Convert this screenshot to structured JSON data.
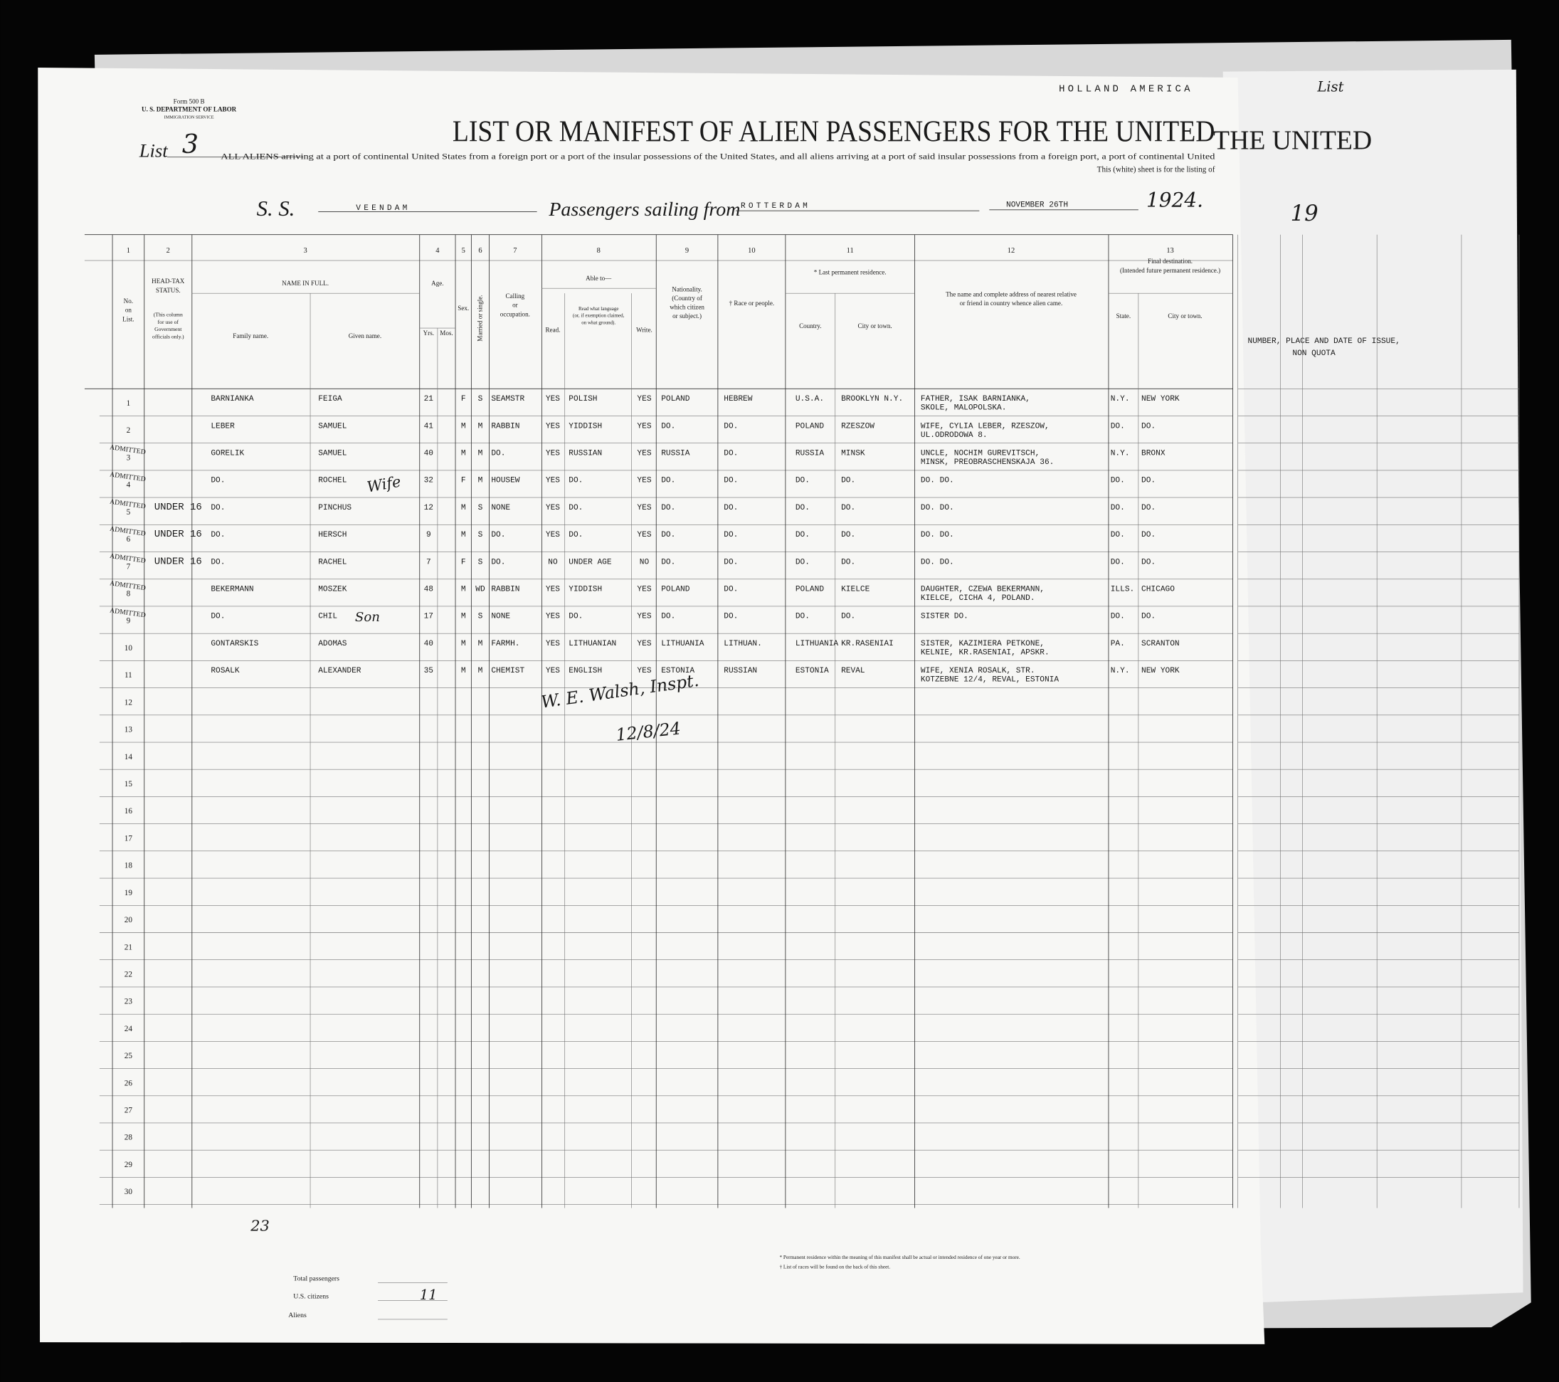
{
  "header": {
    "line_name": "HOLLAND AMERICA",
    "form": "Form 500 B",
    "department": "U. S. DEPARTMENT OF LABOR",
    "service": "IMMIGRATION SERVICE",
    "list_label": "List",
    "list_number": "3",
    "title": "LIST OR MANIFEST OF ALIEN PASSENGERS FOR THE UNITED",
    "subtitle": [
      "ALL ALIENS arriving at a port of continental United States from a foreign port or a port of the insular possessions of the United States, and all aliens arriving at a port of said insular possessions from a foreign port, a port of continental United",
      "This (white) sheet is for the listing of"
    ],
    "ss_label": "S. S.",
    "ship": "VEENDAM",
    "sailing_label": "Passengers sailing from",
    "port": "ROTTERDAM",
    "date": "NOVEMBER 26TH",
    "year": "1924."
  },
  "back_sheet": {
    "list_label": "List",
    "title": "THE UNITED",
    "year": "19",
    "column_note": "NUMBER, PLACE AND DATE OF ISSUE,",
    "quota": "NON QUOTA"
  },
  "columns": [
    {
      "number": "1",
      "label": [
        "No.",
        "on",
        "List."
      ]
    },
    {
      "number": "2",
      "label": [
        "HEAD-TAX",
        "STATUS."
      ],
      "note": [
        "(This column",
        "for use of",
        "Government",
        "officials only.)"
      ]
    },
    {
      "number": "3",
      "label": [
        "NAME IN FULL."
      ],
      "sub": [
        "Family name.",
        "Given name."
      ]
    },
    {
      "number": "4",
      "label": [
        "Age."
      ],
      "sub": [
        "Yrs.",
        "Mos."
      ]
    },
    {
      "number": "5",
      "label": [
        "Sex."
      ]
    },
    {
      "number": "6",
      "label": [
        "Married or single."
      ]
    },
    {
      "number": "7",
      "label": [
        "Calling",
        "or",
        "occupation."
      ]
    },
    {
      "number": "8",
      "label": [
        "Able to—"
      ],
      "sub": [
        "Read.",
        "Read what language",
        "(or, if exemption claimed,",
        "on what ground).",
        "Write."
      ]
    },
    {
      "number": "9",
      "label": [
        "Nationality.",
        "(Country of",
        "which citizen",
        "or subject.)"
      ]
    },
    {
      "number": "10",
      "label": [
        "† Race or people."
      ]
    },
    {
      "number": "11",
      "label": [
        "* Last permanent residence."
      ],
      "sub": [
        "Country.",
        "City or town."
      ]
    },
    {
      "number": "12",
      "label": [
        "The name and complete address of nearest relative",
        "or friend in country whence alien came."
      ]
    },
    {
      "number": "13",
      "label": [
        "Final destination.",
        "(Intended future permanent residence.)"
      ],
      "sub": [
        "State.",
        "City or town."
      ]
    }
  ],
  "row_numbers": [
    "1",
    "2",
    "3",
    "4",
    "5",
    "6",
    "7",
    "8",
    "9",
    "10",
    "11",
    "12",
    "13",
    "14",
    "15",
    "16",
    "17",
    "18",
    "19",
    "20",
    "21",
    "22",
    "23",
    "24",
    "25",
    "26",
    "27",
    "28",
    "29",
    "30"
  ],
  "rows": [
    {
      "family": "BARNIANKA",
      "given": "FEIGA",
      "yrs": "21",
      "sex": "F",
      "married": "S",
      "occupation": "SEAMSTR",
      "read": "YES",
      "language": "POLISH",
      "write": "YES",
      "nationality": "POLAND",
      "race": "HEBREW",
      "country": "U.S.A.",
      "city": "BROOKLYN N.Y.",
      "relative": [
        "FATHER, ISAK BARNIANKA,",
        "SKOLE, MALOPOLSKA."
      ],
      "state": "N.Y.",
      "dest_city": "NEW YORK"
    },
    {
      "family": "LEBER",
      "given": "SAMUEL",
      "yrs": "41",
      "sex": "M",
      "married": "M",
      "occupation": "RABBIN",
      "read": "YES",
      "language": "YIDDISH",
      "write": "YES",
      "nationality": "DO.",
      "race": "DO.",
      "country": "POLAND",
      "city": "RZESZOW",
      "relative": [
        "WIFE, CYLIA LEBER, RZESZOW,",
        "UL.ODRODOWA 8."
      ],
      "state": "DO.",
      "dest_city": "DO."
    },
    {
      "head_tax": [
        "ADMITTED"
      ],
      "family": "GORELIK",
      "given": "SAMUEL",
      "yrs": "40",
      "sex": "M",
      "married": "M",
      "occupation": "DO.",
      "read": "YES",
      "language": "RUSSIAN",
      "write": "YES",
      "nationality": "RUSSIA",
      "race": "DO.",
      "country": "RUSSIA",
      "city": "MINSK",
      "relative": [
        "UNCLE, NOCHIM GUREVITSCH,",
        "MINSK, PREOBRASCHENSKAJA 36."
      ],
      "state": "N.Y.",
      "dest_city": "BRONX"
    },
    {
      "head_tax": [
        "ADMITTED"
      ],
      "family": "DO.",
      "given": "ROCHEL",
      "yrs": "32",
      "sex": "F",
      "married": "M",
      "occupation": "HOUSEW",
      "read": "YES",
      "language": "DO.",
      "write": "YES",
      "nationality": "DO.",
      "race": "DO.",
      "country": "DO.",
      "city": "DO.",
      "relative": [
        "DO.                DO."
      ],
      "state": "DO.",
      "dest_city": "DO."
    },
    {
      "head_tax": [
        "ADMITTED",
        "UNDER 16"
      ],
      "family": "DO.",
      "given": "PINCHUS",
      "yrs": "12",
      "sex": "M",
      "married": "S",
      "occupation": "NONE",
      "read": "YES",
      "language": "DO.",
      "write": "YES",
      "nationality": "DO.",
      "race": "DO.",
      "country": "DO.",
      "city": "DO.",
      "relative": [
        "DO.                DO."
      ],
      "state": "DO.",
      "dest_city": "DO."
    },
    {
      "head_tax": [
        "ADMITTED",
        "UNDER 16"
      ],
      "family": "DO.",
      "given": "HERSCH",
      "yrs": "9",
      "sex": "M",
      "married": "S",
      "occupation": "DO.",
      "read": "YES",
      "language": "DO.",
      "write": "YES",
      "nationality": "DO.",
      "race": "DO.",
      "country": "DO.",
      "city": "DO.",
      "relative": [
        "DO.                DO."
      ],
      "state": "DO.",
      "dest_city": "DO."
    },
    {
      "head_tax": [
        "ADMITTED",
        "UNDER 16"
      ],
      "family": "DO.",
      "given": "RACHEL",
      "yrs": "7",
      "sex": "F",
      "married": "S",
      "occupation": "DO.",
      "read": "NO",
      "language": "UNDER AGE",
      "write": "NO",
      "nationality": "DO.",
      "race": "DO.",
      "country": "DO.",
      "city": "DO.",
      "relative": [
        "DO.                DO."
      ],
      "state": "DO.",
      "dest_city": "DO."
    },
    {
      "head_tax": [
        "ADMITTED"
      ],
      "family": "BEKERMANN",
      "given": "MOSZEK",
      "yrs": "48",
      "sex": "M",
      "married": "WD",
      "occupation": "RABBIN",
      "read": "YES",
      "language": "YIDDISH",
      "write": "YES",
      "nationality": "POLAND",
      "race": "DO.",
      "country": "POLAND",
      "city": "KIELCE",
      "relative": [
        "DAUGHTER, CZEWA BEKERMANN,",
        "KIELCE, CICHA 4, POLAND."
      ],
      "state": "ILLS.",
      "dest_city": "CHICAGO"
    },
    {
      "head_tax": [
        "ADMITTED"
      ],
      "family": "DO.",
      "given": "CHIL",
      "yrs": "17",
      "sex": "M",
      "married": "S",
      "occupation": "NONE",
      "read": "YES",
      "language": "DO.",
      "write": "YES",
      "nationality": "DO.",
      "race": "DO.",
      "country": "DO.",
      "city": "DO.",
      "relative": [
        "SISTER             DO."
      ],
      "state": "DO.",
      "dest_city": "DO."
    },
    {
      "family": "GONTARSKIS",
      "given": "ADOMAS",
      "yrs": "40",
      "sex": "M",
      "married": "M",
      "occupation": "FARMH.",
      "read": "YES",
      "language": "LITHUANIAN",
      "write": "YES",
      "nationality": "LITHUANIA",
      "race": "LITHUAN.",
      "country": "LITHUANIA",
      "city": "KR.RASENIAI",
      "relative": [
        "SISTER, KAZIMIERA PETKONE,",
        "KELNIE, KR.RASENIAI, APSKR."
      ],
      "state": "PA.",
      "dest_city": "SCRANTON"
    },
    {
      "family": "ROSALK",
      "given": "ALEXANDER",
      "yrs": "35",
      "sex": "M",
      "married": "M",
      "occupation": "CHEMIST",
      "read": "YES",
      "language": "ENGLISH",
      "write": "YES",
      "nationality": "ESTONIA",
      "race": "RUSSIAN",
      "country": "ESTONIA",
      "city": "REVAL",
      "relative": [
        "WIFE, XENIA ROSALK, STR.",
        "KOTZEBNE 12/4, REVAL, ESTONIA"
      ],
      "state": "N.Y.",
      "dest_city": "NEW YORK"
    }
  ],
  "handwriting": {
    "wife": "Wife",
    "son": "Son",
    "signature": "W. E. Walsh, Inspt.",
    "signature_date": "12/8/24",
    "page_count": "23"
  },
  "footer": {
    "total_passengers": "Total passengers",
    "us_citizens": "U.S. citizens",
    "aliens": "Aliens",
    "count": "11",
    "notes": [
      "* Permanent residence within the meaning of this manifest shall be actual or intended residence of one year or more.",
      "† List of races will be found on the back of this sheet."
    ]
  }
}
